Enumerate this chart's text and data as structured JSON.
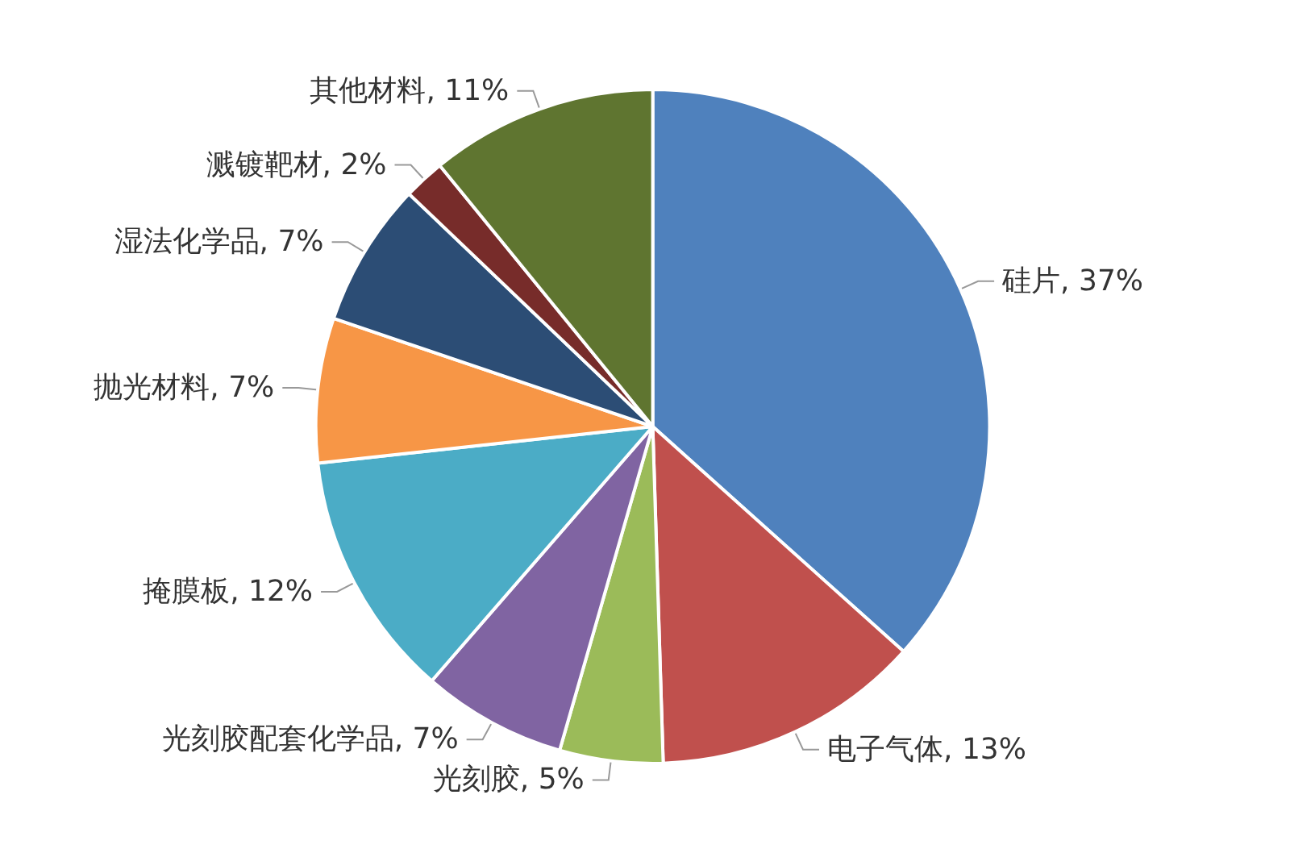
{
  "chart_data": {
    "type": "pie",
    "categories": [
      "硅片",
      "电子气体",
      "光刻胶",
      "光刻胶配套化学品",
      "掩膜板",
      "抛光材料",
      "湿法化学品",
      "溅镀靶材",
      "其他材料"
    ],
    "values": [
      37,
      13,
      5,
      7,
      12,
      7,
      7,
      2,
      11
    ],
    "value_labels": [
      "37%",
      "13%",
      "5%",
      "7%",
      "12%",
      "7%",
      "7%",
      "2%",
      "11%"
    ],
    "colors": [
      "#4f81bd",
      "#c0504d",
      "#9bbb59",
      "#8064a2",
      "#4bacc6",
      "#f79646",
      "#2c4d75",
      "#772c2a",
      "#5f7530"
    ],
    "legend": false
  }
}
